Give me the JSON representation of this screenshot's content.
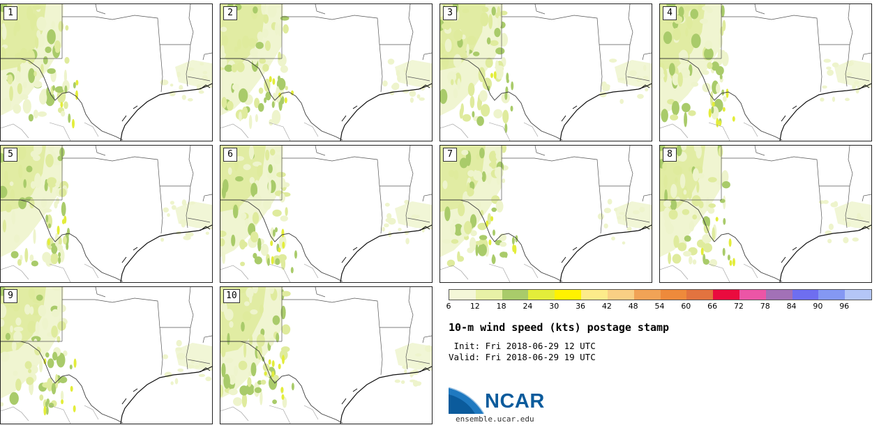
{
  "title": "10-m wind speed (kts) postage stamp",
  "init_line": " Init: Fri 2018-06-29 12 UTC",
  "valid_line": "Valid: Fri 2018-06-29 19 UTC",
  "site": "ensemble.ucar.edu",
  "logo_text": "NCAR",
  "members": [
    "1",
    "2",
    "3",
    "4",
    "5",
    "6",
    "7",
    "8",
    "9",
    "10"
  ],
  "colorbar": {
    "ticks": [
      "6",
      "12",
      "18",
      "24",
      "30",
      "36",
      "42",
      "48",
      "54",
      "60",
      "66",
      "72",
      "78",
      "84",
      "90",
      "96"
    ],
    "colors": [
      "#f4f7d8",
      "#e8f1a6",
      "#a9cb6a",
      "#e3ed3a",
      "#fff200",
      "#fdeb8a",
      "#f9cf84",
      "#f1a356",
      "#ee8a3b",
      "#e2733f",
      "#ea0b3e",
      "#ec55a6",
      "#a271b7",
      "#6e6ef0",
      "#8498f3",
      "#b4c6f7"
    ]
  },
  "colors": {
    "light_fill": "#eef4cc",
    "mid_fill": "#dfeb9d",
    "dark_fill": "#a9cb6a",
    "yellow_fill": "#e3ed3a",
    "border": "#3b3b3b",
    "logo_blue": "#0b5b9c"
  }
}
